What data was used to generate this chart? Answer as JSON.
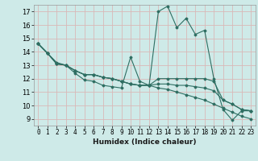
{
  "xlabel": "Humidex (Indice chaleur)",
  "ylabel": "",
  "xlim": [
    -0.5,
    23.5
  ],
  "ylim": [
    8.5,
    17.5
  ],
  "xticks": [
    0,
    1,
    2,
    3,
    4,
    5,
    6,
    7,
    8,
    9,
    10,
    11,
    12,
    13,
    14,
    15,
    16,
    17,
    18,
    19,
    20,
    21,
    22,
    23
  ],
  "yticks": [
    9,
    10,
    11,
    12,
    13,
    14,
    15,
    16,
    17
  ],
  "bg_color": "#ceeae8",
  "grid_color": "#d9b8b8",
  "line_color": "#2e6e62",
  "lines": [
    [
      0,
      1,
      2,
      3,
      4,
      5,
      6,
      7,
      8,
      9,
      10,
      11,
      12,
      13,
      14,
      15,
      16,
      17,
      18,
      19,
      20,
      21,
      22,
      23
    ],
    [
      14.6,
      13.9,
      13.2,
      13.0,
      12.4,
      11.9,
      11.8,
      11.5,
      11.4,
      11.3,
      13.6,
      11.8,
      11.5,
      17.0,
      17.4,
      15.8,
      16.5,
      15.3,
      15.6,
      12.0,
      9.7,
      8.9,
      9.6,
      9.6
    ],
    [
      14.6,
      13.9,
      13.1,
      13.0,
      12.6,
      12.3,
      12.3,
      12.1,
      12.0,
      11.8,
      11.6,
      11.5,
      11.5,
      12.0,
      12.0,
      12.0,
      12.0,
      12.0,
      12.0,
      11.8,
      10.4,
      10.1,
      9.7,
      9.6
    ],
    [
      14.6,
      13.9,
      13.1,
      13.0,
      12.6,
      12.3,
      12.3,
      12.1,
      12.0,
      11.8,
      11.6,
      11.5,
      11.5,
      11.6,
      11.6,
      11.5,
      11.5,
      11.4,
      11.3,
      11.1,
      10.4,
      10.1,
      9.7,
      9.6
    ],
    [
      14.6,
      13.9,
      13.1,
      13.0,
      12.6,
      12.3,
      12.3,
      12.1,
      12.0,
      11.8,
      11.6,
      11.5,
      11.5,
      11.3,
      11.2,
      11.0,
      10.8,
      10.6,
      10.4,
      10.1,
      9.8,
      9.5,
      9.2,
      9.0
    ]
  ]
}
